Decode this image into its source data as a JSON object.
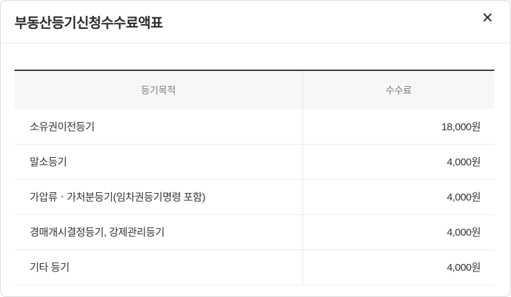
{
  "modal": {
    "title": "부동산등기신청수수료액표",
    "close_icon": "✕"
  },
  "table": {
    "columns": [
      {
        "label": "등기목적"
      },
      {
        "label": "수수료"
      }
    ],
    "rows": [
      {
        "purpose": "소유권이전등기",
        "fee": "18,000원"
      },
      {
        "purpose": "말소등기",
        "fee": "4,000원"
      },
      {
        "purpose": "가압류ㆍ가처분등기(임차권등기명령 포함)",
        "fee": "4,000원"
      },
      {
        "purpose": "경매개시결정등기, 강제관리등기",
        "fee": "4,000원"
      },
      {
        "purpose": "기타 등기",
        "fee": "4,000원"
      }
    ]
  },
  "colors": {
    "accent_dark_border": "#383838",
    "header_bg": "#f7f7f7",
    "header_text": "#7e7e7e",
    "body_text": "#333333",
    "title_color": "#2b2b2b",
    "close_color": "#252b3a"
  }
}
